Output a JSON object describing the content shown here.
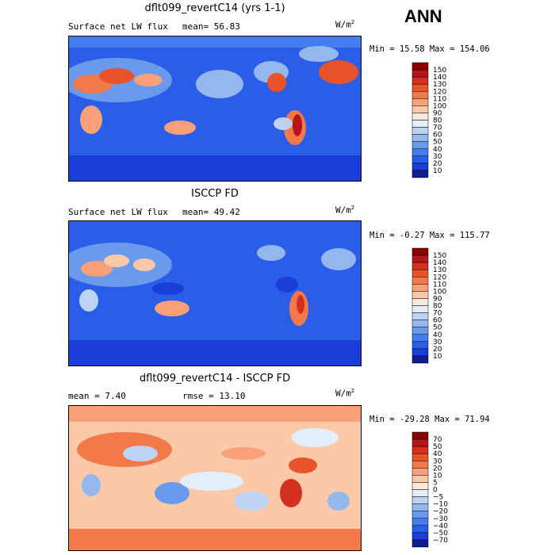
{
  "season": "ANN",
  "units_base": "W/m",
  "units_exp": "2",
  "panels": [
    {
      "title": "dflt099_revertC14 (yrs 1-1)",
      "left": "Surface net LW flux",
      "right": "mean=  56.83",
      "minmax": "Min =  15.58 Max = 154.06",
      "colorbar_labels": [
        "150",
        "140",
        "130",
        "120",
        "110",
        "100",
        "90",
        "80",
        "70",
        "60",
        "50",
        "40",
        "30",
        "20",
        "10"
      ],
      "colors": [
        "#8b0000",
        "#b8141e",
        "#d4301f",
        "#e8532a",
        "#f27a4a",
        "#f9a07a",
        "#fbc8a8",
        "#fce8d8",
        "#e3eefb",
        "#bcd3f4",
        "#94b8ee",
        "#6a9aeb",
        "#447df0",
        "#2a5ee8",
        "#1a3fd8",
        "#0e1f96"
      ]
    },
    {
      "title": "ISCCP FD",
      "left": "Surface net LW flux",
      "right": "mean=  49.42",
      "minmax": "Min =  -0.27 Max = 115.77",
      "colorbar_labels": [
        "150",
        "140",
        "130",
        "120",
        "110",
        "100",
        "90",
        "80",
        "70",
        "60",
        "50",
        "40",
        "30",
        "20",
        "10"
      ],
      "colors": [
        "#8b0000",
        "#b8141e",
        "#d4301f",
        "#e8532a",
        "#f27a4a",
        "#f9a07a",
        "#fbc8a8",
        "#fce8d8",
        "#e3eefb",
        "#bcd3f4",
        "#94b8ee",
        "#6a9aeb",
        "#447df0",
        "#2a5ee8",
        "#1a3fd8",
        "#0e1f96"
      ]
    },
    {
      "title": "dflt099_revertC14 - ISCCP FD",
      "left": "mean =   7.40",
      "right": "rmse =  13.10",
      "minmax": "Min = -29.28 Max =  71.94",
      "colorbar_labels": [
        "70",
        "50",
        "40",
        "30",
        "20",
        "10",
        "5",
        "0",
        "−5",
        "−10",
        "−20",
        "−30",
        "−40",
        "−50",
        "−70"
      ],
      "colors": [
        "#8b0000",
        "#b8141e",
        "#d4301f",
        "#e8532a",
        "#f27a4a",
        "#f9a07a",
        "#fbc8a8",
        "#fce8d8",
        "#e3eefb",
        "#bcd3f4",
        "#94b8ee",
        "#6a9aeb",
        "#447df0",
        "#2a5ee8",
        "#1a3fd8",
        "#0e1f96"
      ]
    }
  ]
}
